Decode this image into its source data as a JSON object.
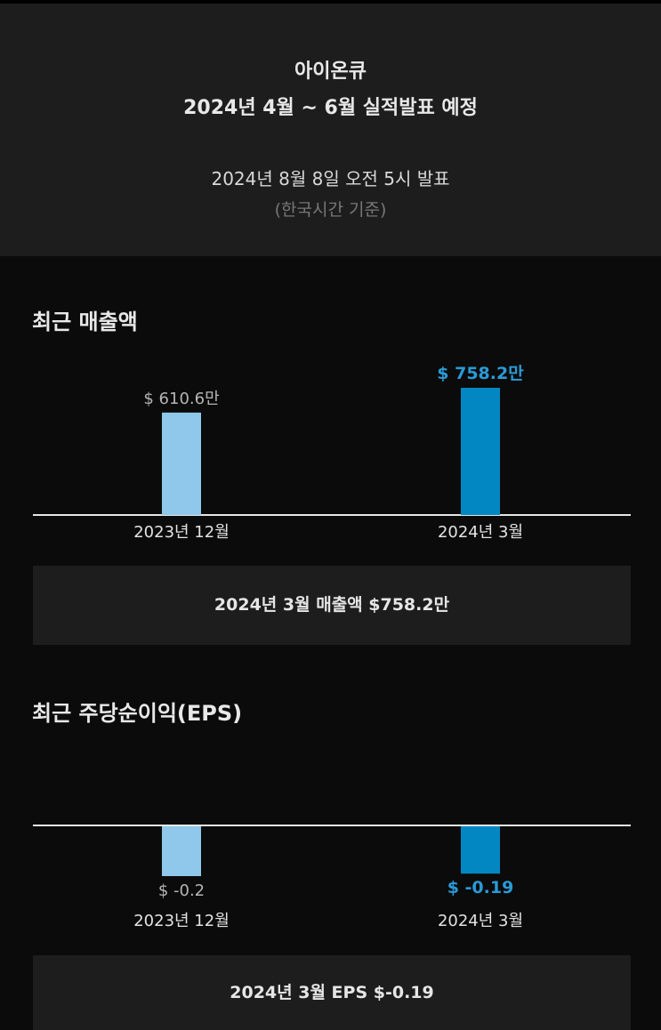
{
  "header": {
    "company": "아이온큐",
    "event": "2024년 4월 ~ 6월 실적발표 예정",
    "date": "2024년 8월 8일 오전 5시 발표",
    "timezone": "(한국시간 기준)"
  },
  "revenue": {
    "title": "최근 매출액",
    "summary": "2024년 3월 매출액 $758.2만"
  },
  "eps": {
    "title": "최근 주당순이익(EPS)",
    "summary": "2024년 3월 EPS $-0.19"
  },
  "colors": {
    "bar_previous": "#8fc8ea",
    "bar_latest": "#0287c3",
    "label_latest": "#2a9ad6",
    "label_previous": "#b5b5b5",
    "baseline": "#e6e6e6"
  },
  "chart_data": [
    {
      "type": "bar",
      "title": "최근 매출액",
      "categories": [
        "2023년 12월",
        "2024년 3월"
      ],
      "values": [
        610.6,
        758.2
      ],
      "value_labels": [
        "$ 610.6만",
        "$ 758.2만"
      ],
      "unit": "만 USD",
      "ylim": [
        0,
        758.2
      ],
      "grid": false
    },
    {
      "type": "bar",
      "title": "최근 주당순이익(EPS)",
      "categories": [
        "2023년 12월",
        "2024년 3월"
      ],
      "values": [
        -0.2,
        -0.19
      ],
      "value_labels": [
        "$ -0.2",
        "$ -0.19"
      ],
      "unit": "USD",
      "ylim": [
        -0.2,
        0
      ],
      "grid": false
    }
  ]
}
